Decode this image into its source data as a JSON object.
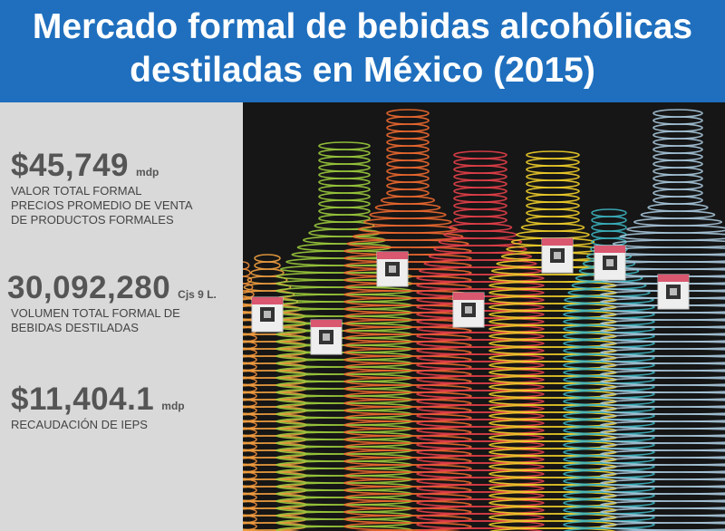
{
  "header": {
    "title_lines": [
      "Mercado formal de bebidas alcohólicas",
      "destiladas en México  (2015)"
    ]
  },
  "stats": [
    {
      "value": "$45,749",
      "unit": "mdp",
      "description": [
        "VALOR TOTAL  FORMAL",
        "PRECIOS PROMEDIO DE VENTA",
        "DE PRODUCTOS FORMALES"
      ]
    },
    {
      "value": "30,092,280",
      "unit": "Cjs 9 L.",
      "description": [
        "VOLUMEN TOTAL FORMAL DE",
        "BEBIDAS DESTILADAS"
      ]
    },
    {
      "value": "$11,404.1",
      "unit": "mdp",
      "description": [
        "RECAUDACIÓN DE IEPS"
      ]
    }
  ]
}
